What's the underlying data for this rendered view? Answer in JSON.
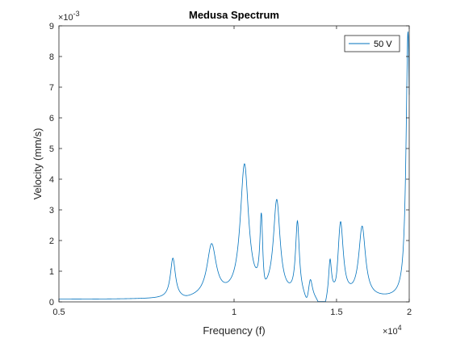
{
  "chart_data": {
    "type": "line",
    "title": "Medusa Spectrum",
    "xlabel": "Frequency (f)",
    "ylabel": "Velocity (mm/s)",
    "x_scale": "log",
    "xlim": [
      5000,
      20000
    ],
    "ylim": [
      0,
      0.009
    ],
    "x_ticks": [
      5000,
      10000,
      15000,
      20000
    ],
    "x_tick_labels": [
      "0.5",
      "1",
      "1.5",
      "2"
    ],
    "x_exponent": "×10",
    "x_exponent_power": "4",
    "y_ticks": [
      0,
      0.001,
      0.002,
      0.003,
      0.004,
      0.005,
      0.006,
      0.007,
      0.008,
      0.009
    ],
    "y_tick_labels": [
      "0",
      "1",
      "2",
      "3",
      "4",
      "5",
      "6",
      "7",
      "8",
      "9"
    ],
    "y_exponent": "×10",
    "y_exponent_power": "-3",
    "grid": false,
    "legend_position": "top-right",
    "line_color": "#0072bd",
    "series": [
      {
        "name": "50 V",
        "baseline": 8e-05,
        "peaks": [
          {
            "f": 7850,
            "amp": 0.0013,
            "width": 0.012
          },
          {
            "f": 9150,
            "amp": 0.0017,
            "width": 0.022
          },
          {
            "f": 10420,
            "amp": 0.0043,
            "width": 0.02
          },
          {
            "f": 11140,
            "amp": 0.0025,
            "width": 0.007
          },
          {
            "f": 11840,
            "amp": 0.0031,
            "width": 0.016
          },
          {
            "f": 12850,
            "amp": 0.0024,
            "width": 0.009
          },
          {
            "f": 13520,
            "amp": 0.0007,
            "width": 0.01
          },
          {
            "f": 14620,
            "amp": 0.0012,
            "width": 0.007
          },
          {
            "f": 15240,
            "amp": 0.0025,
            "width": 0.013
          },
          {
            "f": 16600,
            "amp": 0.0023,
            "width": 0.016
          },
          {
            "f": 19900,
            "amp": 0.0087,
            "width": 0.009
          }
        ],
        "antiresonances": [
          {
            "f": 8250,
            "depth": 6e-05,
            "width": 0.03
          },
          {
            "f": 11250,
            "depth": 0.00045,
            "width": 0.012
          },
          {
            "f": 13350,
            "depth": 0.0004,
            "width": 0.012
          },
          {
            "f": 14200,
            "depth": 0.0006,
            "width": 0.018
          },
          {
            "f": 15000,
            "depth": 0.0003,
            "width": 0.01
          }
        ]
      }
    ]
  }
}
